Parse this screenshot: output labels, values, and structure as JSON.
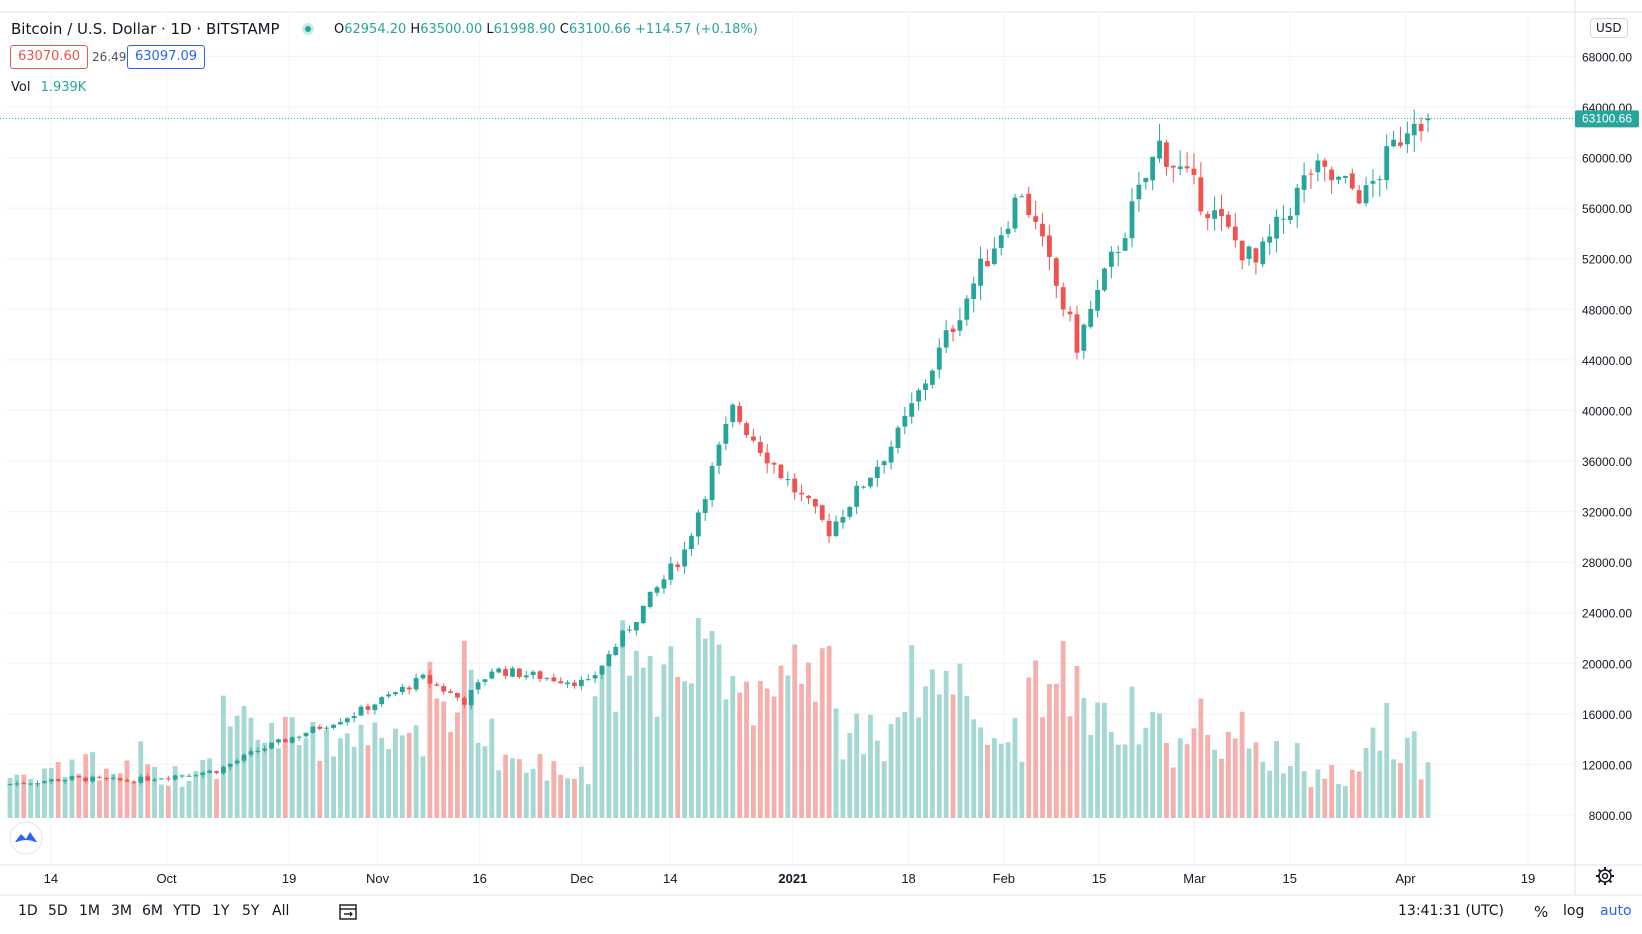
{
  "header": {
    "title": "Bitcoin / U.S. Dollar · 1D · BITSTAMP",
    "ohlc": {
      "o_label": "O",
      "o": "62954.20",
      "h_label": "H",
      "h": "63500.00",
      "l_label": "L",
      "l": "61998.90",
      "c_label": "C",
      "c": "63100.66",
      "change": "+114.57 (+0.18%)"
    },
    "bid": "63070.60",
    "spread": "26.49",
    "ask": "63097.09",
    "vol_label": "Vol",
    "vol_value": "1.939K"
  },
  "currency": "USD",
  "last_price_label": "63100.66",
  "bottom_bar": {
    "timeframes": [
      "1D",
      "5D",
      "1M",
      "3M",
      "6M",
      "YTD",
      "1Y",
      "5Y",
      "All"
    ],
    "time": "13:41:31 (UTC)",
    "percent": "%",
    "log": "log",
    "auto": "auto"
  },
  "colors": {
    "up": "#26a69a",
    "down": "#ef5350",
    "up_vol": "#a5d8d2",
    "down_vol": "#f4b0ad",
    "accent": "#2962ff"
  },
  "chart_data": {
    "type": "candlestick",
    "title": "Bitcoin / U.S. Dollar · 1D · BITSTAMP",
    "y_tick_labels": [
      "8000.00",
      "12000.00",
      "16000.00",
      "20000.00",
      "24000.00",
      "28000.00",
      "32000.00",
      "36000.00",
      "40000.00",
      "44000.00",
      "48000.00",
      "52000.00",
      "56000.00",
      "60000.00",
      "64000.00",
      "68000.00"
    ],
    "y_ticks": [
      8000,
      12000,
      16000,
      20000,
      24000,
      28000,
      32000,
      36000,
      40000,
      44000,
      48000,
      52000,
      56000,
      60000,
      64000,
      68000
    ],
    "x_tick_labels": [
      "14",
      "Oct",
      "19",
      "Nov",
      "16",
      "Dec",
      "14",
      "2021",
      "18",
      "Feb",
      "15",
      "Mar",
      "15",
      "Apr",
      "19"
    ],
    "x_ticks": [
      "2020-09-14",
      "2020-10-01",
      "2020-10-19",
      "2020-11-01",
      "2020-11-16",
      "2020-12-01",
      "2020-12-14",
      "2021-01-01",
      "2021-01-18",
      "2021-02-01",
      "2021-02-15",
      "2021-03-01",
      "2021-03-15",
      "2021-04-01",
      "2021-04-19"
    ],
    "last_price": 63100.66,
    "series": [
      {
        "name": "BTCUSD",
        "segments": [
          {
            "days": 10,
            "from": 10400,
            "to": 10900,
            "vol": "low"
          },
          {
            "days": 8,
            "from": 10900,
            "to": 10700,
            "vol": "low"
          },
          {
            "days": 13,
            "from": 10700,
            "to": 11500,
            "vol": "low"
          },
          {
            "days": 6,
            "from": 11500,
            "to": 13100,
            "vol": "mid"
          },
          {
            "days": 14,
            "from": 13100,
            "to": 16000,
            "vol": "mid"
          },
          {
            "days": 10,
            "from": 16000,
            "to": 18800,
            "vol": "mid"
          },
          {
            "days": 6,
            "from": 18800,
            "to": 17000,
            "vol": "high"
          },
          {
            "days": 4,
            "from": 17000,
            "to": 19500,
            "vol": "mid"
          },
          {
            "days": 14,
            "from": 19500,
            "to": 18400,
            "vol": "low"
          },
          {
            "days": 14,
            "from": 18400,
            "to": 28900,
            "vol": "high"
          },
          {
            "days": 7,
            "from": 28900,
            "to": 40000,
            "vol": "high"
          },
          {
            "days": 7,
            "from": 40000,
            "to": 35000,
            "vol": "high"
          },
          {
            "days": 7,
            "from": 35000,
            "to": 30500,
            "vol": "high"
          },
          {
            "days": 10,
            "from": 30500,
            "to": 38000,
            "vol": "mid"
          },
          {
            "days": 10,
            "from": 38000,
            "to": 49000,
            "vol": "high"
          },
          {
            "days": 8,
            "from": 49000,
            "to": 57500,
            "vol": "mid"
          },
          {
            "days": 8,
            "from": 57500,
            "to": 45200,
            "vol": "high"
          },
          {
            "days": 12,
            "from": 45200,
            "to": 61000,
            "vol": "mid"
          },
          {
            "days": 10,
            "from": 61000,
            "to": 54000,
            "vol": "mid"
          },
          {
            "days": 4,
            "from": 54000,
            "to": 51500,
            "vol": "mid"
          },
          {
            "days": 8,
            "from": 51500,
            "to": 59000,
            "vol": "low"
          },
          {
            "days": 8,
            "from": 59000,
            "to": 57000,
            "vol": "low"
          },
          {
            "days": 7,
            "from": 57000,
            "to": 63600,
            "vol": "mid"
          },
          {
            "days": 2,
            "from": 63600,
            "to": 63100,
            "vol": "low"
          }
        ]
      }
    ],
    "volume_label": "Vol"
  }
}
